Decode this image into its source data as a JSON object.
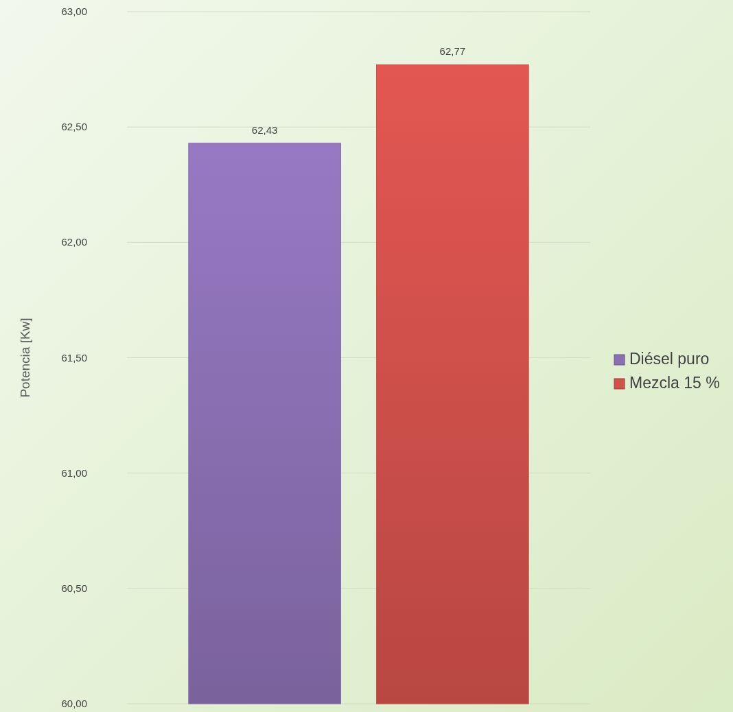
{
  "chart_data": {
    "type": "bar",
    "ylabel": "Potencia [Kw]",
    "categories": [
      null
    ],
    "series": [
      {
        "name": "Diésel puro",
        "color": "#8a6fb2",
        "values": [
          62.43
        ],
        "value_labels": [
          "62,43"
        ]
      },
      {
        "name": "Mezcla 15 %",
        "color": "#d0504b",
        "values": [
          62.77
        ],
        "value_labels": [
          "62,77"
        ]
      }
    ],
    "ylim": [
      60,
      63
    ],
    "yticks": [
      {
        "value": 60,
        "label": "60,00"
      },
      {
        "value": 60.5,
        "label": "60,50"
      },
      {
        "value": 61,
        "label": "61,00"
      },
      {
        "value": 61.5,
        "label": "61,50"
      },
      {
        "value": 62,
        "label": "62,00"
      },
      {
        "value": 62.5,
        "label": "62,50"
      },
      {
        "value": 63,
        "label": "63,00"
      }
    ],
    "grid": "y",
    "legend": "right"
  }
}
